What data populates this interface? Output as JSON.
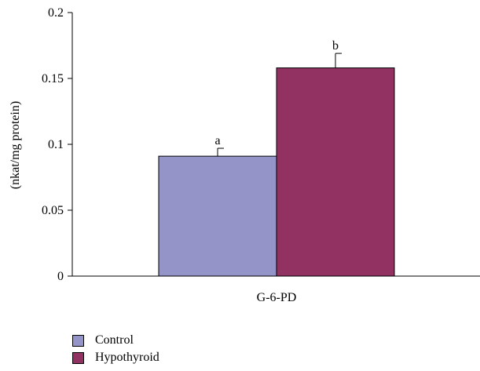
{
  "chart_data": {
    "type": "bar",
    "title": "",
    "xlabel": "",
    "ylabel": "(nkat/mg protein)",
    "ylim": [
      0,
      0.2
    ],
    "yticks": [
      "0",
      "0.05",
      "0.1",
      "0.15",
      "0.2"
    ],
    "categories": [
      "G-6-PD"
    ],
    "grid": false,
    "legend_position": "bottom-left",
    "series": [
      {
        "name": "Control",
        "color": "#9494c8",
        "values": [
          0.091
        ],
        "error": [
          0.006
        ],
        "annotation": "a"
      },
      {
        "name": "Hypothyroid",
        "color": "#923262",
        "values": [
          0.158
        ],
        "error": [
          0.011
        ],
        "annotation": "b"
      }
    ]
  }
}
